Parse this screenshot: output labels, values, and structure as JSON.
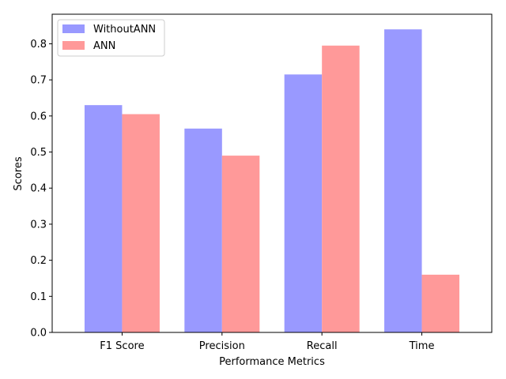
{
  "chart_data": {
    "type": "bar",
    "categories": [
      "F1 Score",
      "Precision",
      "Recall",
      "Time"
    ],
    "series": [
      {
        "name": "WithoutANN",
        "values": [
          0.63,
          0.565,
          0.715,
          0.84
        ],
        "color": "#9999ff"
      },
      {
        "name": "ANN",
        "values": [
          0.605,
          0.49,
          0.795,
          0.16
        ],
        "color": "#ff9999"
      }
    ],
    "xlabel": "Performance Metrics",
    "ylabel": "Scores",
    "ylim": [
      0,
      0.882
    ],
    "yticks": [
      0.0,
      0.1,
      0.2,
      0.3,
      0.4,
      0.5,
      0.6,
      0.7,
      0.8
    ],
    "ytick_labels": [
      "0.0",
      "0.1",
      "0.2",
      "0.3",
      "0.4",
      "0.5",
      "0.6",
      "0.7",
      "0.8"
    ],
    "grid": false,
    "legend_position": "top-left"
  }
}
